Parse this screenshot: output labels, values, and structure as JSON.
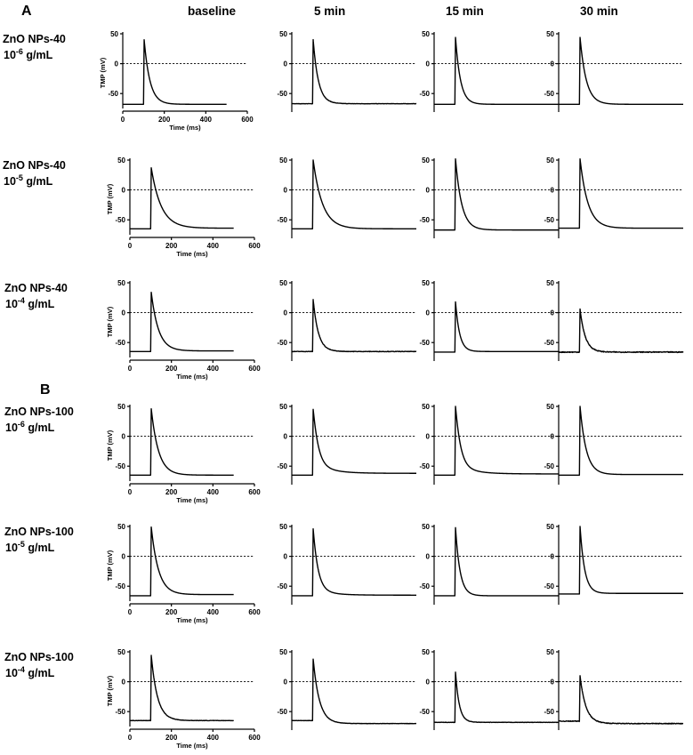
{
  "panels": [
    {
      "letter": "A",
      "rows": [
        0,
        1,
        2
      ]
    },
    {
      "letter": "B",
      "rows": [
        3,
        4,
        5
      ]
    }
  ],
  "columns": [
    "baseline",
    "5 min",
    "15 min",
    "30 min"
  ],
  "row_labels": [
    {
      "line1": "ZnO NPs-40",
      "exp": "-6",
      "unit": "g/mL"
    },
    {
      "line1": "ZnO NPs-40",
      "exp": "-5",
      "unit": "g/mL"
    },
    {
      "line1": "ZnO NPs-40",
      "exp": "-4",
      "unit": "g/mL"
    },
    {
      "line1": "ZnO NPs-100",
      "exp": "-6",
      "unit": "g/mL"
    },
    {
      "line1": "ZnO NPs-100",
      "exp": "-5",
      "unit": "g/mL"
    },
    {
      "line1": "ZnO NPs-100",
      "exp": "-4",
      "unit": "g/mL"
    }
  ],
  "chart_data": {
    "type": "line",
    "xlabel": "Time (ms)",
    "ylabel": "TMP (mV)",
    "xlim": [
      0,
      600
    ],
    "ylim": [
      -75,
      50
    ],
    "x_ticks": [
      0,
      200,
      400,
      600
    ],
    "y_ticks": [
      -50,
      0,
      50
    ],
    "reference_line_y": 0,
    "grid": false,
    "trace_shape": "action potential: resting, upstroke at ~100 ms, peak, repolarization, return to resting; trace ends at 500 ms",
    "traces": [
      {
        "row": 0,
        "col": 0,
        "rest": -68,
        "peak": 40,
        "decay": 28,
        "shoulder": 0,
        "noise": 0,
        "final": -68
      },
      {
        "row": 0,
        "col": 1,
        "rest": -67,
        "peak": 40,
        "decay": 25,
        "shoulder": 0,
        "noise": 0.5,
        "final": -67
      },
      {
        "row": 0,
        "col": 2,
        "rest": -68,
        "peak": 44,
        "decay": 24,
        "shoulder": 0,
        "noise": 0,
        "final": -68
      },
      {
        "row": 0,
        "col": 3,
        "rest": -68,
        "peak": 44,
        "decay": 30,
        "shoulder": 0,
        "noise": 0,
        "final": -68
      },
      {
        "row": 1,
        "col": 0,
        "rest": -65,
        "peak": 37,
        "decay": 48,
        "shoulder": 0,
        "noise": 0,
        "final": -64
      },
      {
        "row": 1,
        "col": 1,
        "rest": -65,
        "peak": 50,
        "decay": 45,
        "shoulder": 0,
        "noise": 0,
        "final": -65
      },
      {
        "row": 1,
        "col": 2,
        "rest": -67,
        "peak": 52,
        "decay": 30,
        "shoulder": 0,
        "noise": 0,
        "final": -67
      },
      {
        "row": 1,
        "col": 3,
        "rest": -64,
        "peak": 52,
        "decay": 38,
        "shoulder": 0,
        "noise": 0,
        "final": -64
      },
      {
        "row": 2,
        "col": 0,
        "rest": -65,
        "peak": 34,
        "decay": 35,
        "shoulder": 0,
        "noise": 0,
        "final": -64
      },
      {
        "row": 2,
        "col": 1,
        "rest": -65,
        "peak": 22,
        "decay": 25,
        "shoulder": 0,
        "noise": 0.8,
        "final": -65
      },
      {
        "row": 2,
        "col": 2,
        "rest": -66,
        "peak": 18,
        "decay": 20,
        "shoulder": 0,
        "noise": 0,
        "final": -65
      },
      {
        "row": 2,
        "col": 3,
        "rest": -66,
        "peak": 6,
        "decay": 25,
        "shoulder": 0,
        "noise": 1.5,
        "final": -66
      },
      {
        "row": 3,
        "col": 0,
        "rest": -65,
        "peak": 46,
        "decay": 35,
        "shoulder": 0,
        "noise": 0,
        "final": -65
      },
      {
        "row": 3,
        "col": 1,
        "rest": -65,
        "peak": 45,
        "decay": 22,
        "shoulder": 18,
        "noise": 0,
        "final": -62
      },
      {
        "row": 3,
        "col": 2,
        "rest": -65,
        "peak": 50,
        "decay": 22,
        "shoulder": 16,
        "noise": 0,
        "final": -63
      },
      {
        "row": 3,
        "col": 3,
        "rest": -65,
        "peak": 50,
        "decay": 30,
        "shoulder": 0,
        "noise": 0,
        "final": -64
      },
      {
        "row": 4,
        "col": 0,
        "rest": -66,
        "peak": 49,
        "decay": 35,
        "shoulder": 0,
        "noise": 0,
        "final": -64
      },
      {
        "row": 4,
        "col": 1,
        "rest": -66,
        "peak": 46,
        "decay": 22,
        "shoulder": 10,
        "noise": 0,
        "final": -65
      },
      {
        "row": 4,
        "col": 2,
        "rest": -66,
        "peak": 48,
        "decay": 22,
        "shoulder": 0,
        "noise": 0,
        "final": -66
      },
      {
        "row": 4,
        "col": 3,
        "rest": -63,
        "peak": 50,
        "decay": 22,
        "shoulder": 0,
        "noise": 0,
        "final": -62
      },
      {
        "row": 5,
        "col": 0,
        "rest": -65,
        "peak": 44,
        "decay": 30,
        "shoulder": 0,
        "noise": 0.6,
        "final": -65
      },
      {
        "row": 5,
        "col": 1,
        "rest": -65,
        "peak": 38,
        "decay": 30,
        "shoulder": 0,
        "noise": 0.5,
        "final": -70
      },
      {
        "row": 5,
        "col": 2,
        "rest": -68,
        "peak": 16,
        "decay": 18,
        "shoulder": 0,
        "noise": 0.6,
        "final": -68
      },
      {
        "row": 5,
        "col": 3,
        "rest": -66,
        "peak": 10,
        "decay": 28,
        "shoulder": 0,
        "noise": 1.2,
        "final": -70
      }
    ]
  }
}
